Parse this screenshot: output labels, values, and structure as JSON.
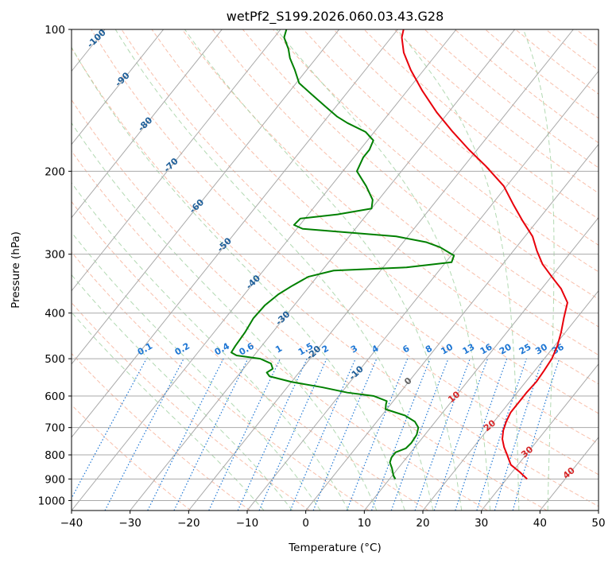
{
  "chart_data": {
    "type": "skew-t",
    "title": "wetPf2_S199.2026.060.03.43.G28",
    "xlabel": "Temperature (°C)",
    "ylabel": "Pressure (hPa)",
    "xlim": [
      -40,
      50
    ],
    "ylim_hpa": [
      1050,
      100
    ],
    "y_scale": "log",
    "grid": true,
    "x_ticks": [
      "−40",
      "−30",
      "−20",
      "−10",
      "0",
      "10",
      "20",
      "30",
      "40",
      "50"
    ],
    "x_tick_values": [
      -40,
      -30,
      -20,
      -10,
      0,
      10,
      20,
      30,
      40,
      50
    ],
    "y_ticks": [
      "100",
      "200",
      "300",
      "400",
      "500",
      "600",
      "700",
      "800",
      "900",
      "1000"
    ],
    "y_tick_values": [
      100,
      200,
      300,
      400,
      500,
      600,
      700,
      800,
      900,
      1000
    ],
    "colors": {
      "temperature": "#e8000b",
      "dewpoint": "#008000",
      "isotherm": "#a9a9a9",
      "dry_adiabat": "#f5a98f",
      "moist_adiabat": "#9fcf9f",
      "mixing_ratio": "#1f77d4",
      "isotherm_label": "#1f5f99",
      "moist_label": "#d62728"
    },
    "series": [
      {
        "key": "temperature",
        "points": [
          [
            900,
            33.5
          ],
          [
            870,
            31.3
          ],
          [
            840,
            28.8
          ],
          [
            800,
            26.8
          ],
          [
            770,
            25.2
          ],
          [
            740,
            23.8
          ],
          [
            710,
            22.8
          ],
          [
            680,
            22.1
          ],
          [
            650,
            21.6
          ],
          [
            620,
            21.6
          ],
          [
            590,
            21.6
          ],
          [
            560,
            21.8
          ],
          [
            530,
            21.6
          ],
          [
            500,
            21.3
          ],
          [
            470,
            20.5
          ],
          [
            440,
            19.3
          ],
          [
            410,
            17.8
          ],
          [
            380,
            16.3
          ],
          [
            355,
            13.3
          ],
          [
            335,
            10.1
          ],
          [
            315,
            6.8
          ],
          [
            295,
            4.0
          ],
          [
            275,
            1.3
          ],
          [
            255,
            -2.5
          ],
          [
            235,
            -6.4
          ],
          [
            215,
            -10.5
          ],
          [
            195,
            -16.3
          ],
          [
            180,
            -21.4
          ],
          [
            165,
            -26.6
          ],
          [
            150,
            -32.0
          ],
          [
            135,
            -37.4
          ],
          [
            122,
            -42.2
          ],
          [
            112,
            -45.8
          ],
          [
            104,
            -48.2
          ],
          [
            100,
            -49.0
          ]
        ]
      },
      {
        "key": "dewpoint",
        "points": [
          [
            900,
            11.0
          ],
          [
            885,
            10.2
          ],
          [
            870,
            9.6
          ],
          [
            855,
            9.0
          ],
          [
            830,
            7.8
          ],
          [
            810,
            7.4
          ],
          [
            790,
            7.4
          ],
          [
            775,
            8.6
          ],
          [
            755,
            8.8
          ],
          [
            725,
            8.6
          ],
          [
            700,
            7.9
          ],
          [
            680,
            6.5
          ],
          [
            660,
            4.0
          ],
          [
            640,
            -0.2
          ],
          [
            625,
            -0.8
          ],
          [
            615,
            -1.1
          ],
          [
            600,
            -4.0
          ],
          [
            590,
            -9.0
          ],
          [
            575,
            -14.0
          ],
          [
            560,
            -20.0
          ],
          [
            545,
            -24.5
          ],
          [
            535,
            -25.5
          ],
          [
            525,
            -25.0
          ],
          [
            512,
            -26.0
          ],
          [
            500,
            -28.5
          ],
          [
            492,
            -33.0
          ],
          [
            485,
            -34.3
          ],
          [
            470,
            -34.5
          ],
          [
            440,
            -34.7
          ],
          [
            410,
            -35.2
          ],
          [
            385,
            -35.0
          ],
          [
            365,
            -34.2
          ],
          [
            350,
            -33.0
          ],
          [
            335,
            -31.5
          ],
          [
            325,
            -28.0
          ],
          [
            320,
            -16.0
          ],
          [
            312,
            -9.0
          ],
          [
            302,
            -9.5
          ],
          [
            290,
            -13.0
          ],
          [
            283,
            -16.0
          ],
          [
            275,
            -22.0
          ],
          [
            265,
            -39.0
          ],
          [
            260,
            -41.0
          ],
          [
            252,
            -40.8
          ],
          [
            247,
            -35.0
          ],
          [
            240,
            -30.0
          ],
          [
            230,
            -31.0
          ],
          [
            215,
            -34.0
          ],
          [
            200,
            -37.6
          ],
          [
            187,
            -38.4
          ],
          [
            180,
            -38.4
          ],
          [
            172,
            -39.0
          ],
          [
            165,
            -41.5
          ],
          [
            158,
            -45.8
          ],
          [
            153,
            -48.5
          ],
          [
            146,
            -51.7
          ],
          [
            137,
            -56.0
          ],
          [
            130,
            -59.5
          ],
          [
            122,
            -62.0
          ],
          [
            115,
            -64.5
          ],
          [
            110,
            -66.0
          ],
          [
            104,
            -68.3
          ],
          [
            100,
            -69.0
          ]
        ]
      }
    ],
    "isotherm_labels": [
      "-100",
      "-90",
      "-80",
      "-70",
      "-60",
      "-50",
      "-40",
      "-30",
      "-20",
      "-10",
      "0"
    ],
    "isotherm_label_values": [
      -100,
      -90,
      -80,
      -70,
      -60,
      -50,
      -40,
      -30,
      -20,
      -10,
      0
    ],
    "isotherm_label_pressures": [
      104,
      127,
      158,
      193,
      236,
      285,
      342,
      408,
      483,
      533,
      555
    ],
    "mixing_ratio_labels": [
      "0.1",
      "0.2",
      "0.4",
      "0.6",
      "1",
      "1.5",
      "2",
      "3",
      "4",
      "6",
      "8",
      "10",
      "13",
      "16",
      "20",
      "25",
      "30",
      "36"
    ],
    "mixing_ratio_values": [
      0.1,
      0.2,
      0.4,
      0.6,
      1,
      1.5,
      2,
      3,
      4,
      6,
      8,
      10,
      13,
      16,
      20,
      25,
      30,
      36
    ],
    "moist_labels": [
      "10",
      "20",
      "30",
      "40"
    ],
    "moist_label_values": [
      10,
      20,
      30,
      40
    ],
    "moist_label_pressures": [
      600,
      690,
      785,
      870
    ]
  }
}
